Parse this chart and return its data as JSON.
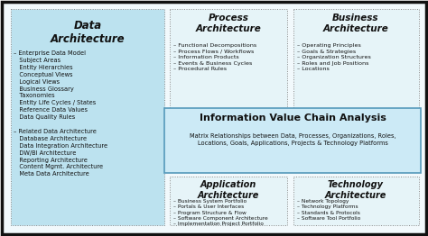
{
  "outer_border_color": "#111111",
  "outer_bg": "#f0f8fc",
  "data_arch_bg": "#b8e0ec",
  "small_box_bg": "#e4f4f8",
  "ivca_bg": "#c8ecf8",
  "ivca_border": "#4488aa",
  "data_arch_title": "Data\nArchitecture",
  "data_arch_line1": "– Enterprise Data Model",
  "data_arch_subs1": "   Subject Areas\n   Entity Hierarchies\n   Conceptual Views\n   Logical Views\n   Business Glossary\n   Taxonomies\n   Entity Life Cycles / States\n   Reference Data Values\n   Data Quality Rules",
  "data_arch_line2": "\n– Related Data Architecture",
  "data_arch_subs2": "   Database Architecture\n   Data Integration Architecture\n   DW/BI Architecture\n   Reporting Architecture\n   Content Mgmt. Architecture\n   Meta Data Architecture",
  "process_arch_title": "Process\nArchitecture",
  "process_arch_content": "– Functional Decompositions\n– Process Flows / Workflows\n– Information Products\n– Events & Business Cycles\n– Procedural Rules",
  "business_arch_title": "Business\nArchitecture",
  "business_arch_content": "– Operating Principles\n– Goals & Strategies\n– Organization Structures\n– Roles and Job Positions\n– Locations",
  "ivca_title": "Information Value Chain Analysis",
  "ivca_content": "Matrix Relationships between Data, Processes, Organizations, Roles,\nLocations, Goals, Applications, Projects & Technology Platforms",
  "app_arch_title": "Application\nArchitecture",
  "app_arch_content": "– Business System Portfolio\n– Portals & User Interfaces\n– Program Structure & Flow\n– Software Component Architecture\n– Implementation Project Portfolio",
  "tech_arch_title": "Technology\nArchitecture",
  "tech_arch_content": "– Network Topology\n– Technology Platforms\n– Standards & Protocols\n– Software Tool Portfolio"
}
